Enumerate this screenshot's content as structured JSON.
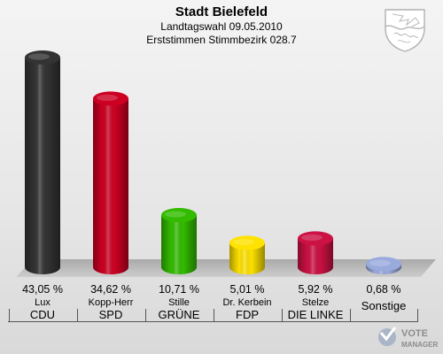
{
  "header": {
    "title": "Stadt Bielefeld",
    "subtitle1": "Landtagswahl 09.05.2010",
    "subtitle2": "Erststimmen Stimmbezirk 028.7"
  },
  "brand": {
    "line1": "VOTE",
    "line2": "MANAGER"
  },
  "colors": {
    "CDU": "#333333",
    "SPD": "#cc0022",
    "GRUENE": "#33bb00",
    "FDP": "#ffe200",
    "LINKE": "#cc1144",
    "Sonstige": "#99aadd"
  },
  "chart_data": {
    "type": "bar",
    "categories": [
      "CDU",
      "SPD",
      "GRÜNE",
      "FDP",
      "DIE LINKE",
      "Sonstige"
    ],
    "candidates": [
      "Lux",
      "Kopp-Herr",
      "Stille",
      "Dr. Kerbein",
      "Stelze",
      ""
    ],
    "values": [
      43.05,
      34.62,
      10.71,
      5.01,
      5.92,
      0.68
    ],
    "value_labels": [
      "43,05 %",
      "34,62 %",
      "10,71 %",
      "5,01 %",
      "5,92 %",
      "0,68 %"
    ],
    "bar_colors": [
      "#333333",
      "#cc0022",
      "#33bb00",
      "#ffe200",
      "#cc1144",
      "#99aadd"
    ],
    "ylim": [
      0,
      43.05
    ],
    "grid": false,
    "legend": "none"
  }
}
